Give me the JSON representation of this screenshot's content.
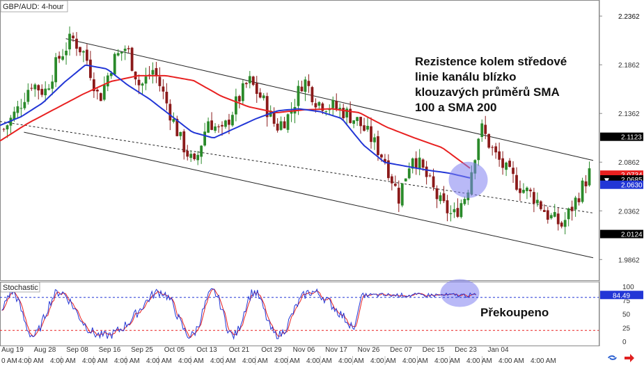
{
  "colors": {
    "bull": "#2a8a2a",
    "bear": "#8b1a1a",
    "sma100": "#2236d6",
    "sma200": "#e82020",
    "stoch_k": "#2236d6",
    "stoch_d": "#e82020",
    "channel": "#222222",
    "circle": "#8080f0",
    "level_blue": "#2236d6",
    "level_black": "#000000",
    "level_red": "#e82020"
  },
  "icons": [
    "refresh-icon",
    "arrow-icon"
  ],
  "chart_data": [
    {
      "type": "candlestick",
      "title": "GBP/AUD: 4-hour",
      "ylim": [
        1.965,
        2.252
      ],
      "price_ticks": [
        "2.2362",
        "2.1862",
        "2.1362",
        "2.0862",
        "2.0362",
        "1.9862"
      ],
      "x_tick_labels": [
        "Aug 19",
        "Aug 28",
        "Sep 08",
        "Sep 16",
        "Sep 25",
        "Oct 05",
        "Oct 13",
        "Oct 21",
        "Oct 29",
        "Nov 06",
        "Nov 17",
        "Nov 26",
        "Dec 07",
        "Dec 15",
        "Dec 23",
        "Jan 04"
      ],
      "x_tick_sublabels": [
        "0 AM",
        "4:00 AM"
      ],
      "price_path": [
        2.12,
        2.14,
        2.168,
        2.158,
        2.192,
        2.214,
        2.196,
        2.15,
        2.19,
        2.205,
        2.163,
        2.182,
        2.145,
        2.108,
        2.082,
        2.13,
        2.115,
        2.145,
        2.17,
        2.15,
        2.122,
        2.135,
        2.172,
        2.148,
        2.144,
        2.138,
        2.128,
        2.11,
        2.088,
        2.05,
        2.095,
        2.072,
        2.045,
        2.03,
        2.055,
        2.123,
        2.095,
        2.075,
        2.06,
        2.05,
        2.031,
        2.021,
        2.047,
        2.075
      ],
      "sma100_path": [
        2.124,
        2.133,
        2.147,
        2.168,
        2.186,
        2.182,
        2.165,
        2.151,
        2.134,
        2.117,
        2.111,
        2.121,
        2.131,
        2.139,
        2.141,
        2.138,
        2.131,
        2.104,
        2.086,
        2.082,
        2.078,
        2.075,
        2.07
      ],
      "sma200_path": [
        2.108,
        2.126,
        2.141,
        2.156,
        2.169,
        2.175,
        2.175,
        2.17,
        2.154,
        2.143,
        2.137,
        2.14,
        2.141,
        2.137,
        2.122,
        2.111,
        2.101,
        2.08
      ],
      "price_levels": [
        {
          "label": "2.1123",
          "value": 2.1123,
          "style": "black"
        },
        {
          "label": "2.0734",
          "value": 2.0734,
          "style": "red"
        },
        {
          "label": "2.0685",
          "value": 2.0685,
          "style": "black",
          "marker": "▼"
        },
        {
          "label": "2.0630",
          "value": 2.063,
          "style": "blue"
        },
        {
          "label": "2.0124",
          "value": 2.0124,
          "style": "black"
        }
      ],
      "channel": {
        "upper": [
          [
            0.11,
            2.213
          ],
          [
            1.0,
            2.088
          ]
        ],
        "middle": [
          [
            0.0,
            2.128
          ],
          [
            1.0,
            2.034
          ]
        ],
        "lower": [
          [
            0.04,
            2.117
          ],
          [
            1.0,
            1.988
          ]
        ]
      },
      "annotation": {
        "lines": [
          "Rezistence kolem středové",
          "linie kanálu blízko",
          "klouzavých průměrů SMA",
          "100 a SMA 200"
        ]
      }
    },
    {
      "type": "line",
      "title": "Stochastic",
      "ylim": [
        0,
        100
      ],
      "y_ticks": [
        "100",
        "75",
        "50",
        "25",
        "0"
      ],
      "levels": [
        80,
        20
      ],
      "value_label": "84.49",
      "note": "Překoupeno"
    }
  ]
}
